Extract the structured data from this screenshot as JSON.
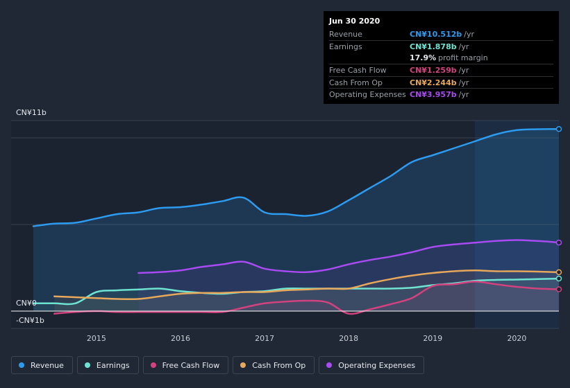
{
  "tooltip": {
    "date": "Jun 30 2020",
    "rows": [
      {
        "label": "Revenue",
        "value": "CN¥10.512b",
        "unit": "/yr",
        "color": "#2d9bef"
      },
      {
        "label": "Earnings",
        "value": "CN¥1.878b",
        "unit": "/yr",
        "color": "#6fe3d1"
      },
      {
        "label": "",
        "value": "17.9%",
        "unit": "profit margin",
        "color": "#e6e9ee"
      },
      {
        "label": "Free Cash Flow",
        "value": "CN¥1.259b",
        "unit": "/yr",
        "color": "#d1427f"
      },
      {
        "label": "Cash From Op",
        "value": "CN¥2.244b",
        "unit": "/yr",
        "color": "#e8a85c"
      },
      {
        "label": "Operating Expenses",
        "value": "CN¥3.957b",
        "unit": "/yr",
        "color": "#a94bf2"
      }
    ]
  },
  "chart_data": {
    "type": "line",
    "title": "",
    "xlabel": "",
    "ylabel": "",
    "y_axis_labels": [
      "CN¥11b",
      "CN¥0",
      "-CN¥1b"
    ],
    "x_ticks": [
      "2015",
      "2016",
      "2017",
      "2018",
      "2019",
      "2020"
    ],
    "x_tick_values": [
      2015,
      2016,
      2017,
      2018,
      2019,
      2020
    ],
    "xlim": [
      2014.25,
      2020.5
    ],
    "ylim": [
      -1,
      11
    ],
    "grid": true,
    "highlight_range": [
      2019.5,
      2020.5
    ],
    "series": [
      {
        "name": "Revenue",
        "color": "#2d9bef",
        "x": [
          2014.25,
          2014.5,
          2014.75,
          2015.0,
          2015.25,
          2015.5,
          2015.75,
          2016.0,
          2016.25,
          2016.5,
          2016.75,
          2017.0,
          2017.25,
          2017.5,
          2017.75,
          2018.0,
          2018.25,
          2018.5,
          2018.75,
          2019.0,
          2019.25,
          2019.5,
          2019.75,
          2020.0,
          2020.25,
          2020.5
        ],
        "y": [
          4.9,
          5.05,
          5.1,
          5.35,
          5.6,
          5.7,
          5.95,
          6.0,
          6.15,
          6.35,
          6.55,
          5.7,
          5.6,
          5.5,
          5.75,
          6.4,
          7.1,
          7.8,
          8.6,
          9.0,
          9.4,
          9.8,
          10.2,
          10.45,
          10.5,
          10.512
        ]
      },
      {
        "name": "Earnings",
        "color": "#6fe3d1",
        "x": [
          2014.25,
          2014.5,
          2014.75,
          2015.0,
          2015.25,
          2015.5,
          2015.75,
          2016.0,
          2016.25,
          2016.5,
          2016.75,
          2017.0,
          2017.25,
          2017.5,
          2017.75,
          2018.0,
          2018.25,
          2018.5,
          2018.75,
          2019.0,
          2019.25,
          2019.5,
          2019.75,
          2020.0,
          2020.25,
          2020.5
        ],
        "y": [
          0.45,
          0.45,
          0.45,
          1.1,
          1.2,
          1.25,
          1.3,
          1.15,
          1.05,
          1.0,
          1.1,
          1.15,
          1.3,
          1.3,
          1.3,
          1.3,
          1.3,
          1.3,
          1.35,
          1.5,
          1.6,
          1.75,
          1.8,
          1.82,
          1.85,
          1.878
        ]
      },
      {
        "name": "Free Cash Flow",
        "color": "#d1427f",
        "x": [
          2014.5,
          2014.75,
          2015.0,
          2015.25,
          2015.5,
          2015.75,
          2016.0,
          2016.25,
          2016.5,
          2016.75,
          2017.0,
          2017.25,
          2017.5,
          2017.75,
          2018.0,
          2018.25,
          2018.5,
          2018.75,
          2019.0,
          2019.25,
          2019.5,
          2019.75,
          2020.0,
          2020.25,
          2020.5
        ],
        "y": [
          -0.15,
          -0.05,
          0.0,
          -0.05,
          -0.05,
          -0.05,
          -0.05,
          -0.05,
          -0.05,
          0.2,
          0.45,
          0.55,
          0.6,
          0.5,
          -0.15,
          0.1,
          0.4,
          0.75,
          1.45,
          1.55,
          1.7,
          1.55,
          1.4,
          1.3,
          1.259
        ]
      },
      {
        "name": "Cash From Op",
        "color": "#e8a85c",
        "x": [
          2014.5,
          2014.75,
          2015.0,
          2015.25,
          2015.5,
          2015.75,
          2016.0,
          2016.25,
          2016.5,
          2016.75,
          2017.0,
          2017.25,
          2017.5,
          2017.75,
          2018.0,
          2018.25,
          2018.5,
          2018.75,
          2019.0,
          2019.25,
          2019.5,
          2019.75,
          2020.0,
          2020.25,
          2020.5
        ],
        "y": [
          0.85,
          0.8,
          0.75,
          0.7,
          0.7,
          0.85,
          1.0,
          1.05,
          1.05,
          1.1,
          1.1,
          1.2,
          1.25,
          1.3,
          1.3,
          1.6,
          1.85,
          2.05,
          2.2,
          2.3,
          2.35,
          2.3,
          2.3,
          2.28,
          2.244
        ]
      },
      {
        "name": "Operating Expenses",
        "color": "#a94bf2",
        "x": [
          2015.5,
          2015.75,
          2016.0,
          2016.25,
          2016.5,
          2016.75,
          2017.0,
          2017.25,
          2017.5,
          2017.75,
          2018.0,
          2018.25,
          2018.5,
          2018.75,
          2019.0,
          2019.25,
          2019.5,
          2019.75,
          2020.0,
          2020.25,
          2020.5
        ],
        "y": [
          2.2,
          2.25,
          2.35,
          2.55,
          2.7,
          2.85,
          2.45,
          2.3,
          2.25,
          2.4,
          2.7,
          2.95,
          3.15,
          3.4,
          3.7,
          3.85,
          3.95,
          4.05,
          4.1,
          4.05,
          3.957
        ]
      }
    ]
  },
  "legend": [
    {
      "label": "Revenue",
      "color": "#2d9bef"
    },
    {
      "label": "Earnings",
      "color": "#6fe3d1"
    },
    {
      "label": "Free Cash Flow",
      "color": "#d1427f"
    },
    {
      "label": "Cash From Op",
      "color": "#e8a85c"
    },
    {
      "label": "Operating Expenses",
      "color": "#a94bf2"
    }
  ]
}
